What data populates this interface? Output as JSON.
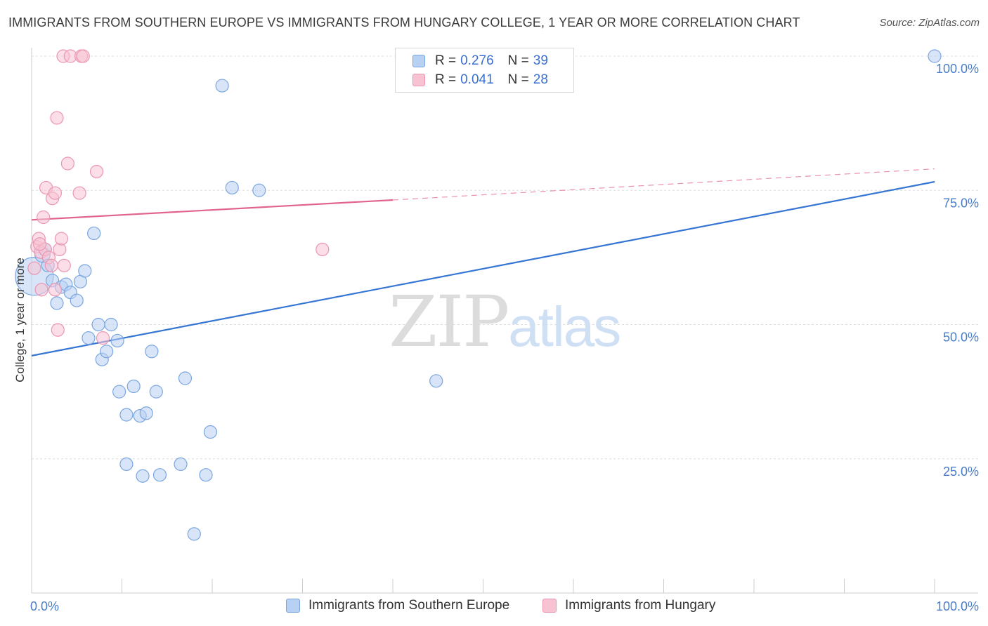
{
  "header": {
    "title": "IMMIGRANTS FROM SOUTHERN EUROPE VS IMMIGRANTS FROM HUNGARY COLLEGE, 1 YEAR OR MORE CORRELATION CHART",
    "source": "Source: ZipAtlas.com"
  },
  "watermark": {
    "zip": "ZIP",
    "atlas": "atlas"
  },
  "legend": {
    "r_label": "R =",
    "n_label": "N =",
    "series1": {
      "r": "0.276",
      "n": "39"
    },
    "series2": {
      "r": "0.041",
      "n": "28"
    }
  },
  "bottom_legend": {
    "series1": "Immigrants from Southern Europe",
    "series2": "Immigrants from Hungary"
  },
  "colors": {
    "blue_fill": "#b8d0f2",
    "blue_stroke": "#7aa6e0",
    "blue_line": "#3575d3",
    "pink_fill": "#f7c3d3",
    "pink_stroke": "#eb97b2",
    "pink_line": "#e0648c",
    "tick_text": "#4a7cc7",
    "grid": "#dddddd"
  },
  "chart_data": {
    "type": "scatter",
    "title": "IMMIGRANTS FROM SOUTHERN EUROPE VS IMMIGRANTS FROM HUNGARY COLLEGE, 1 YEAR OR MORE CORRELATION CHART",
    "xlabel": "",
    "ylabel": "College, 1 year or more",
    "xlim": [
      0,
      100
    ],
    "ylim": [
      0,
      100
    ],
    "x_tick_labels": [
      "0.0%",
      "100.0%"
    ],
    "y_ticks": [
      25,
      50,
      75,
      100
    ],
    "y_tick_labels": [
      "25.0%",
      "50.0%",
      "75.0%",
      "100.0%"
    ],
    "grid": true,
    "legend_position": "top-center",
    "series": [
      {
        "name": "Immigrants from Southern Europe",
        "R": 0.276,
        "N": 39,
        "trend": {
          "x0": 0,
          "y0": 44.2,
          "x1": 100,
          "y1": 76.6
        },
        "points": [
          {
            "x": 0.3,
            "y": 59.0,
            "size": 30
          },
          {
            "x": 1.2,
            "y": 63.0,
            "size": 12
          },
          {
            "x": 1.5,
            "y": 64.0,
            "size": 10
          },
          {
            "x": 1.8,
            "y": 61.0,
            "size": 10
          },
          {
            "x": 2.3,
            "y": 58.2,
            "size": 10
          },
          {
            "x": 2.8,
            "y": 54.0,
            "size": 10
          },
          {
            "x": 3.3,
            "y": 57.0,
            "size": 10
          },
          {
            "x": 3.8,
            "y": 57.5,
            "size": 10
          },
          {
            "x": 4.3,
            "y": 56.0,
            "size": 10
          },
          {
            "x": 5.0,
            "y": 54.5,
            "size": 10
          },
          {
            "x": 5.4,
            "y": 58.0,
            "size": 10
          },
          {
            "x": 5.9,
            "y": 60.0,
            "size": 10
          },
          {
            "x": 6.3,
            "y": 47.5,
            "size": 10
          },
          {
            "x": 6.9,
            "y": 67.0,
            "size": 10
          },
          {
            "x": 7.4,
            "y": 50.0,
            "size": 10
          },
          {
            "x": 7.8,
            "y": 43.5,
            "size": 10
          },
          {
            "x": 8.3,
            "y": 45.0,
            "size": 10
          },
          {
            "x": 8.8,
            "y": 50.0,
            "size": 10
          },
          {
            "x": 9.5,
            "y": 47.0,
            "size": 10
          },
          {
            "x": 9.7,
            "y": 37.5,
            "size": 10
          },
          {
            "x": 10.5,
            "y": 33.2,
            "size": 10
          },
          {
            "x": 10.5,
            "y": 24.0,
            "size": 10
          },
          {
            "x": 11.3,
            "y": 38.5,
            "size": 10
          },
          {
            "x": 12.0,
            "y": 33.0,
            "size": 10
          },
          {
            "x": 12.3,
            "y": 21.8,
            "size": 10
          },
          {
            "x": 12.7,
            "y": 33.5,
            "size": 10
          },
          {
            "x": 13.3,
            "y": 45.0,
            "size": 10
          },
          {
            "x": 13.8,
            "y": 37.5,
            "size": 10
          },
          {
            "x": 14.2,
            "y": 22.0,
            "size": 10
          },
          {
            "x": 16.5,
            "y": 24.0,
            "size": 10
          },
          {
            "x": 17.0,
            "y": 40.0,
            "size": 10
          },
          {
            "x": 18.0,
            "y": 11.0,
            "size": 10
          },
          {
            "x": 19.3,
            "y": 22.0,
            "size": 10
          },
          {
            "x": 19.8,
            "y": 30.0,
            "size": 10
          },
          {
            "x": 21.1,
            "y": 94.5,
            "size": 10
          },
          {
            "x": 22.2,
            "y": 75.5,
            "size": 10
          },
          {
            "x": 25.2,
            "y": 75.0,
            "size": 10
          },
          {
            "x": 44.8,
            "y": 39.5,
            "size": 10
          },
          {
            "x": 100.0,
            "y": 100.0,
            "size": 10
          }
        ]
      },
      {
        "name": "Immigrants from Hungary",
        "R": 0.041,
        "N": 28,
        "trend": {
          "x0": 0,
          "y0": 69.5,
          "x1": 40,
          "y1": 73.2,
          "x2": 100,
          "y2": 79.0
        },
        "points": [
          {
            "x": 0.3,
            "y": 60.5,
            "size": 10
          },
          {
            "x": 0.6,
            "y": 64.5,
            "size": 10
          },
          {
            "x": 0.8,
            "y": 66.0,
            "size": 10
          },
          {
            "x": 1.0,
            "y": 63.5,
            "size": 10
          },
          {
            "x": 1.1,
            "y": 56.5,
            "size": 10
          },
          {
            "x": 1.3,
            "y": 70.0,
            "size": 10
          },
          {
            "x": 1.5,
            "y": 64.0,
            "size": 10
          },
          {
            "x": 1.6,
            "y": 75.5,
            "size": 10
          },
          {
            "x": 1.9,
            "y": 62.5,
            "size": 10
          },
          {
            "x": 2.2,
            "y": 61.0,
            "size": 10
          },
          {
            "x": 2.3,
            "y": 73.5,
            "size": 10
          },
          {
            "x": 2.6,
            "y": 74.5,
            "size": 10
          },
          {
            "x": 2.6,
            "y": 56.5,
            "size": 10
          },
          {
            "x": 2.8,
            "y": 88.5,
            "size": 10
          },
          {
            "x": 2.9,
            "y": 49.0,
            "size": 10
          },
          {
            "x": 3.1,
            "y": 64.0,
            "size": 10
          },
          {
            "x": 3.3,
            "y": 66.0,
            "size": 10
          },
          {
            "x": 3.5,
            "y": 100.0,
            "size": 10
          },
          {
            "x": 3.6,
            "y": 61.0,
            "size": 10
          },
          {
            "x": 4.0,
            "y": 80.0,
            "size": 10
          },
          {
            "x": 4.3,
            "y": 100.0,
            "size": 10
          },
          {
            "x": 5.3,
            "y": 74.5,
            "size": 10
          },
          {
            "x": 5.5,
            "y": 100.0,
            "size": 10
          },
          {
            "x": 5.7,
            "y": 100.0,
            "size": 10
          },
          {
            "x": 7.2,
            "y": 78.5,
            "size": 10
          },
          {
            "x": 7.9,
            "y": 47.5,
            "size": 10
          },
          {
            "x": 32.2,
            "y": 64.0,
            "size": 10
          },
          {
            "x": 0.9,
            "y": 65.0,
            "size": 10
          }
        ]
      }
    ]
  }
}
